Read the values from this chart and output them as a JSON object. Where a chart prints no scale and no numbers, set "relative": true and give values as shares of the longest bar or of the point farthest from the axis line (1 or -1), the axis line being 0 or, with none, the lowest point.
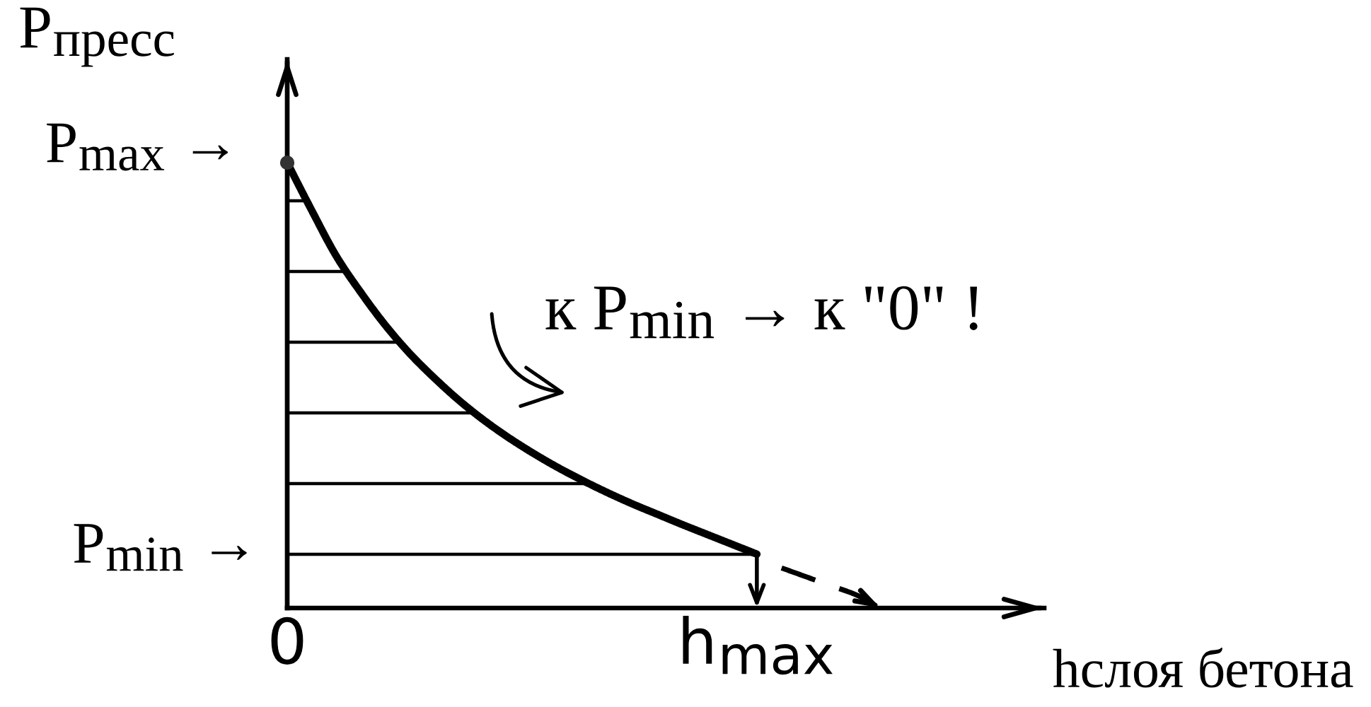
{
  "chart_data": {
    "type": "area",
    "relative": true,
    "ylabel": "P$_{пресс}$",
    "xlabel": "hслоя бетона",
    "categories": [
      "0",
      null,
      null,
      null,
      null,
      null,
      null,
      null,
      null,
      null,
      null,
      null,
      null,
      null,
      null,
      null,
      null,
      null,
      null,
      "h$_{max}$",
      null,
      null,
      null,
      null,
      null
    ],
    "series": [
      {
        "color": "#000000",
        "values": [
          1.0,
          0.892,
          0.789,
          0.707,
          0.633,
          0.569,
          0.514,
          0.464,
          0.42,
          0.381,
          0.346,
          0.314,
          0.285,
          0.258,
          0.233,
          0.21,
          0.187,
          0.165,
          0.143,
          0.121,
          null,
          null,
          null,
          null,
          null
        ]
      },
      {
        "type": "line",
        "line_style": "dashed",
        "color": "#000000",
        "values": [
          null,
          null,
          null,
          null,
          null,
          null,
          null,
          null,
          null,
          null,
          null,
          null,
          null,
          null,
          null,
          null,
          null,
          null,
          null,
          null,
          0.09,
          0.07,
          0.05,
          0.03,
          0.0
        ]
      },
      {
        "type": "scatter",
        "marker": "circle",
        "color": "#333333",
        "values": [
          1.0,
          null,
          null,
          null,
          null,
          null,
          null,
          null,
          null,
          null,
          null,
          null,
          null,
          null,
          null,
          null,
          null,
          null,
          null,
          null,
          null,
          null,
          null,
          null,
          null
        ]
      }
    ],
    "annotations": [
      "P$_{max}$ →",
      "к P$_{min}$ → к \"0\" !",
      "P$_{min}$ →"
    ]
  }
}
